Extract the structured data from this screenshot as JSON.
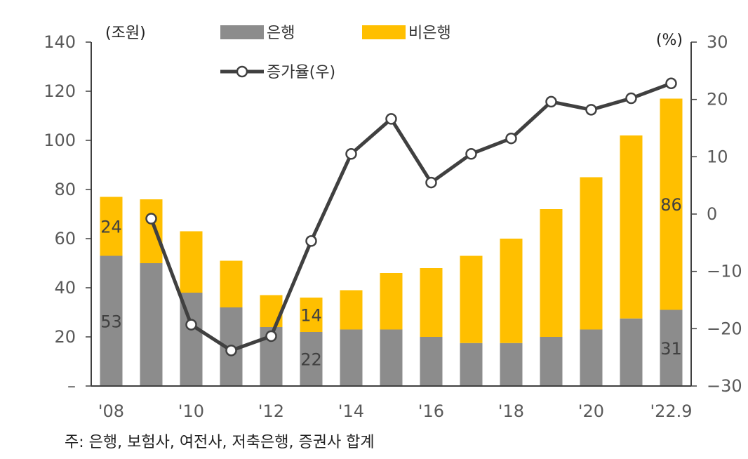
{
  "chart_data": {
    "type": "bar",
    "stacked": true,
    "categories": [
      "'08",
      "'09",
      "'10",
      "'11",
      "'12",
      "'13",
      "'14",
      "'15",
      "'16",
      "'17",
      "'18",
      "'19",
      "'20",
      "'21",
      "'22.9"
    ],
    "x_tick_labels": [
      "'08",
      "'10",
      "'12",
      "'14",
      "'16",
      "'18",
      "'20",
      "'22.9"
    ],
    "series": [
      {
        "name": "은행",
        "axis": "left",
        "color": "#8c8c8c",
        "values": [
          53,
          50,
          38,
          32,
          24,
          22,
          23,
          23,
          20,
          17.5,
          17.5,
          20,
          23,
          27.5,
          31
        ]
      },
      {
        "name": "비은행",
        "axis": "left",
        "color": "#ffbf00",
        "values": [
          24,
          26,
          25,
          19,
          13,
          14,
          16,
          23,
          28,
          35.5,
          42.5,
          52,
          62,
          74.5,
          86
        ]
      },
      {
        "name": "증가율(우)",
        "type": "line",
        "axis": "right",
        "color": "#404040",
        "values": [
          null,
          -0.8,
          -19.3,
          -23.8,
          -21.3,
          -4.7,
          10.5,
          16.6,
          5.5,
          10.5,
          13.2,
          19.6,
          18.2,
          20.2,
          22.8
        ]
      }
    ],
    "left_axis": {
      "unit": "(조원)",
      "min": 0,
      "max": 140,
      "ticks": [
        0,
        20,
        40,
        60,
        80,
        100,
        120,
        140
      ],
      "tick_labels": [
        "–",
        "20",
        "40",
        "60",
        "80",
        "100",
        "120",
        "140"
      ]
    },
    "right_axis": {
      "unit": "(%)",
      "min": -30,
      "max": 30,
      "ticks": [
        -30,
        -20,
        -10,
        0,
        10,
        20,
        30
      ],
      "tick_labels": [
        "−30",
        "−20",
        "−10",
        "0",
        "10",
        "20",
        "30"
      ]
    },
    "data_labels": [
      {
        "text": "53",
        "series": 0,
        "index": 0
      },
      {
        "text": "24",
        "series": 1,
        "index": 0
      },
      {
        "text": "22",
        "series": 0,
        "index": 5
      },
      {
        "text": "14",
        "series": 1,
        "index": 5
      },
      {
        "text": "31",
        "series": 0,
        "index": 14
      },
      {
        "text": "86",
        "series": 1,
        "index": 14
      }
    ],
    "legend": [
      "은행",
      "비은행",
      "증가율(우)"
    ],
    "note": "주: 은행, 보험사, 여전사, 저축은행, 증권사 합계"
  }
}
